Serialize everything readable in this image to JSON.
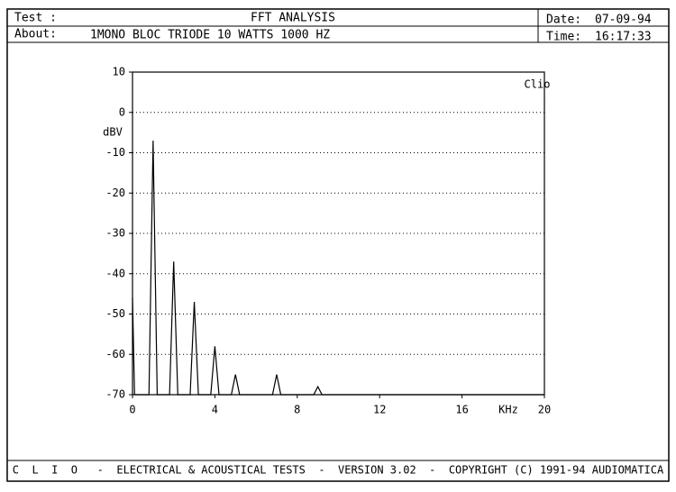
{
  "chart_data": {
    "type": "line",
    "header": {
      "test_label": "Test :",
      "title": "FFT ANALYSIS",
      "about_label": "About:",
      "about": "1MONO BLOC TRIODE 10 WATTS 1000 HZ",
      "date_label": "Date:",
      "date": "07-09-94",
      "time_label": "Time:",
      "time": "16:17:33"
    },
    "y_label": "dBV",
    "x_label": "KHz",
    "annotation": "Clio",
    "footer": "C  L  I  O   -  ELECTRICAL & ACOUSTICAL TESTS  -  VERSION 3.02  -  COPYRIGHT (C) 1991-94 AUDIOMATICA",
    "x": [
      0,
      0.1,
      0.8,
      1,
      1.2,
      1.8,
      2,
      2.2,
      2.8,
      3,
      3.2,
      3.8,
      4,
      4.2,
      4.8,
      5,
      5.2,
      6.8,
      7,
      7.2,
      8.8,
      9,
      9.2,
      20
    ],
    "values": [
      -46,
      -70,
      -70,
      -7,
      -70,
      -70,
      -37,
      -70,
      -70,
      -47,
      -70,
      -70,
      -58,
      -70,
      -70,
      -65,
      -70,
      -70,
      -65,
      -70,
      -70,
      -68,
      -70,
      -70
    ],
    "color": "#000000",
    "xlim": [
      0,
      20
    ],
    "xticks": [
      0,
      4,
      8,
      12,
      16,
      20
    ],
    "ylim": [
      -70,
      10
    ],
    "yticks": [
      10,
      0,
      -10,
      -20,
      -30,
      -40,
      -50,
      -60,
      -70
    ],
    "grid": true
  }
}
